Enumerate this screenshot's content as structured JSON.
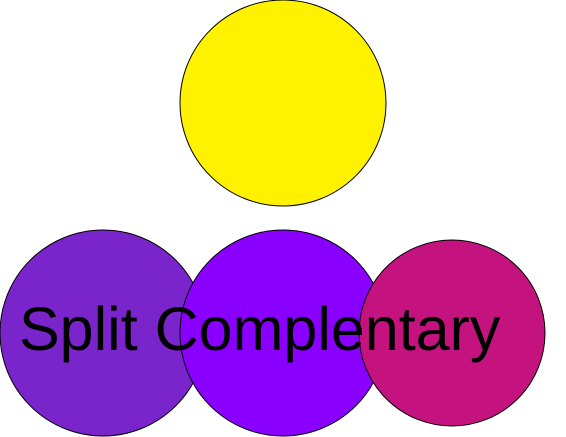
{
  "caption": "Split Complentary",
  "circles": [
    {
      "name": "yellow-circle",
      "color": "#FFF200"
    },
    {
      "name": "violet-circle",
      "color": "#7A24CC"
    },
    {
      "name": "purple-circle",
      "color": "#8A00FF"
    },
    {
      "name": "magenta-circle",
      "color": "#C4137F"
    }
  ]
}
